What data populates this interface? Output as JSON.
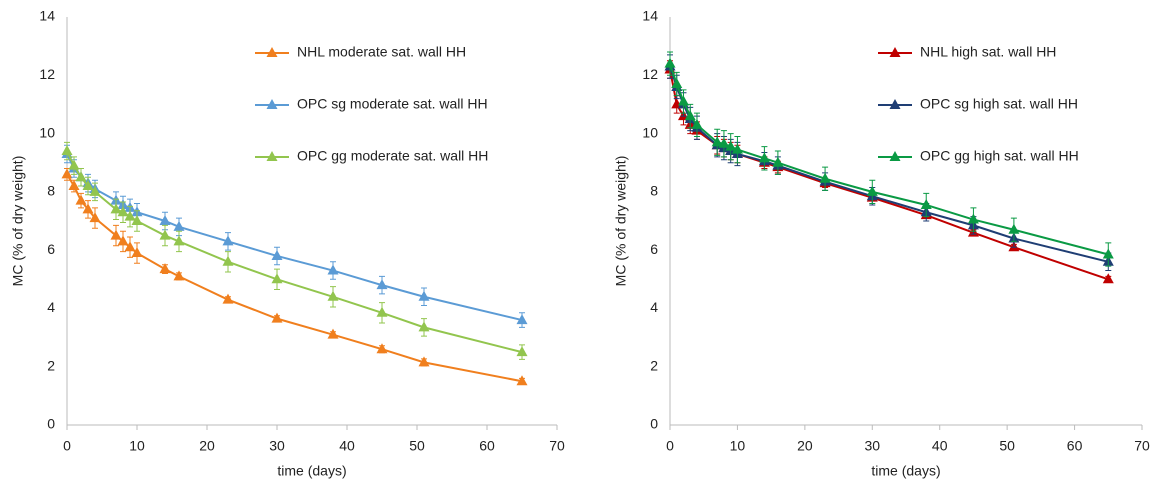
{
  "chart_data": [
    {
      "type": "line",
      "x_label": "time (days)",
      "y_label": "MC (% of dry weight)",
      "x": [
        0,
        1,
        2,
        3,
        4,
        7,
        8,
        9,
        10,
        14,
        16,
        23,
        30,
        38,
        45,
        51,
        65
      ],
      "series": [
        {
          "name": "NHL moderate sat. wall HH",
          "color": "#f07f1e",
          "values": [
            8.6,
            8.2,
            7.7,
            7.4,
            7.1,
            6.5,
            6.3,
            6.1,
            5.9,
            5.35,
            5.1,
            4.3,
            3.65,
            3.1,
            2.6,
            2.15,
            1.5
          ],
          "errors": [
            0.2,
            0.2,
            0.25,
            0.3,
            0.35,
            0.35,
            0.35,
            0.35,
            0.35,
            0.15,
            0.12,
            0.1,
            0.1,
            0.1,
            0.12,
            0.12,
            0.1
          ]
        },
        {
          "name": "OPC sg moderate sat. wall HH",
          "color": "#5b9bd5",
          "values": [
            9.3,
            8.8,
            8.5,
            8.3,
            8.1,
            7.7,
            7.55,
            7.45,
            7.3,
            7.0,
            6.8,
            6.3,
            5.8,
            5.3,
            4.8,
            4.4,
            3.6
          ],
          "errors": [
            0.3,
            0.3,
            0.3,
            0.3,
            0.3,
            0.3,
            0.3,
            0.3,
            0.3,
            0.3,
            0.3,
            0.3,
            0.3,
            0.3,
            0.3,
            0.3,
            0.25
          ]
        },
        {
          "name": "OPC gg moderate sat. wall HH",
          "color": "#92c54e",
          "values": [
            9.4,
            8.9,
            8.5,
            8.2,
            8.0,
            7.4,
            7.3,
            7.15,
            7.0,
            6.5,
            6.3,
            5.6,
            5.0,
            4.4,
            3.85,
            3.35,
            2.5
          ],
          "errors": [
            0.3,
            0.3,
            0.3,
            0.3,
            0.3,
            0.35,
            0.35,
            0.35,
            0.35,
            0.35,
            0.35,
            0.35,
            0.35,
            0.35,
            0.35,
            0.3,
            0.25
          ]
        }
      ],
      "xlim": [
        0,
        70
      ],
      "xticks": [
        0,
        10,
        20,
        30,
        40,
        50,
        60,
        70
      ],
      "ylim": [
        0,
        14
      ],
      "yticks": [
        0,
        2,
        4,
        6,
        8,
        10,
        12,
        14
      ],
      "grid": false,
      "legend": "top"
    },
    {
      "type": "line",
      "x_label": "time (days)",
      "y_label": "MC (% of dry weight)",
      "x": [
        0,
        1,
        2,
        3,
        4,
        7,
        8,
        9,
        10,
        14,
        16,
        23,
        30,
        38,
        45,
        51,
        65
      ],
      "series": [
        {
          "name": "NHL high sat. wall HH",
          "color": "#c00000",
          "values": [
            12.2,
            11.0,
            10.6,
            10.3,
            10.1,
            9.6,
            9.5,
            9.4,
            9.3,
            9.0,
            8.85,
            8.3,
            7.8,
            7.2,
            6.6,
            6.1,
            5.0
          ],
          "errors": [
            0.3,
            0.3,
            0.3,
            0.3,
            0.3,
            0.3,
            0.3,
            0.3,
            0.3,
            0.2,
            0.2,
            0.15,
            0.1,
            0.1,
            0.1,
            0.1,
            0.1
          ]
        },
        {
          "name": "OPC sg high sat. wall HH",
          "color": "#1f3e74",
          "values": [
            12.3,
            11.6,
            11.0,
            10.5,
            10.2,
            9.6,
            9.5,
            9.4,
            9.3,
            9.05,
            8.9,
            8.35,
            7.85,
            7.3,
            6.85,
            6.4,
            5.6
          ],
          "errors": [
            0.4,
            0.4,
            0.4,
            0.4,
            0.4,
            0.4,
            0.4,
            0.4,
            0.4,
            0.3,
            0.3,
            0.3,
            0.3,
            0.3,
            0.3,
            0.3,
            0.3
          ]
        },
        {
          "name": "OPC gg high sat. wall HH",
          "color": "#0a9a44",
          "values": [
            12.4,
            11.7,
            11.1,
            10.6,
            10.3,
            9.7,
            9.65,
            9.55,
            9.45,
            9.15,
            9.0,
            8.45,
            8.0,
            7.55,
            7.05,
            6.7,
            5.85
          ],
          "errors": [
            0.4,
            0.4,
            0.4,
            0.4,
            0.4,
            0.45,
            0.45,
            0.45,
            0.45,
            0.4,
            0.4,
            0.4,
            0.4,
            0.4,
            0.4,
            0.4,
            0.4
          ]
        }
      ],
      "xlim": [
        0,
        70
      ],
      "xticks": [
        0,
        10,
        20,
        30,
        40,
        50,
        60,
        70
      ],
      "ylim": [
        0,
        14
      ],
      "yticks": [
        0,
        2,
        4,
        6,
        8,
        10,
        12,
        14
      ],
      "grid": false,
      "legend": "top"
    }
  ]
}
